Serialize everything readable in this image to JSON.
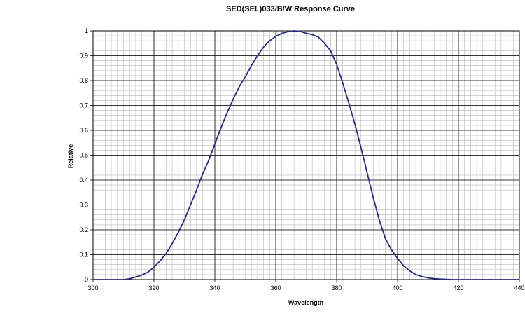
{
  "chart_data": {
    "type": "line",
    "title": "SED(SEL)033/B/W Response Curve",
    "xlabel": "Wavelength",
    "ylabel": "Relative",
    "xlim": [
      300,
      440
    ],
    "ylim": [
      0,
      1
    ],
    "x_ticks": [
      "300",
      "320",
      "340",
      "360",
      "380",
      "400",
      "420",
      "440"
    ],
    "y_ticks": [
      "0",
      "0.1",
      "0.2",
      "0.3",
      "0.4",
      "0.5",
      "0.6",
      "0.7",
      "0.8",
      "0.9",
      "1"
    ],
    "grid": true,
    "legend": "none",
    "colors": {
      "line": "#2a2a7a",
      "major_grid": "#000000",
      "minor_grid": "#b8b8b8"
    },
    "series": [
      {
        "x": [
          300,
          306,
          310,
          312,
          314,
          316,
          318,
          320,
          322,
          324,
          326,
          328,
          330,
          332,
          334,
          336,
          338,
          340,
          342,
          344,
          346,
          348,
          350,
          352,
          354,
          356,
          358,
          360,
          362,
          364,
          366,
          368,
          370,
          372,
          374,
          376,
          378,
          380,
          382,
          384,
          386,
          388,
          390,
          392,
          394,
          396,
          398,
          400,
          402,
          404,
          406,
          408,
          410,
          412,
          414,
          416,
          418,
          420,
          425,
          430,
          440
        ],
        "y": [
          0,
          0,
          0,
          0.003,
          0.01,
          0.018,
          0.03,
          0.05,
          0.075,
          0.105,
          0.145,
          0.19,
          0.24,
          0.3,
          0.36,
          0.425,
          0.48,
          0.545,
          0.61,
          0.67,
          0.725,
          0.775,
          0.815,
          0.86,
          0.9,
          0.935,
          0.96,
          0.978,
          0.99,
          0.997,
          1.0,
          0.998,
          0.99,
          0.985,
          0.975,
          0.95,
          0.92,
          0.865,
          0.79,
          0.71,
          0.625,
          0.53,
          0.43,
          0.33,
          0.24,
          0.165,
          0.12,
          0.085,
          0.055,
          0.035,
          0.02,
          0.012,
          0.007,
          0.004,
          0.002,
          0.001,
          0,
          0,
          0,
          0,
          0
        ]
      }
    ]
  }
}
